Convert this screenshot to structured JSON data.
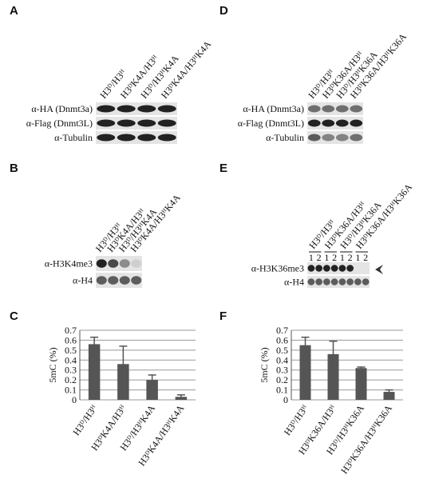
{
  "panels": [
    {
      "letter": "A",
      "lanes": [
        "H3ᴰ/H3ᴴ",
        "H3ᴰK4A/H3ᴴ",
        "H3ᴰ/H3ᴴK4A",
        "H3ᴰK4A/H3ᴴK4A"
      ],
      "rows": [
        "α-HA (Dnmt3a)",
        "α-Flag (Dnmt3L)",
        "α-Tubulin"
      ]
    },
    {
      "letter": "B",
      "lanes": [
        "H3ᴰ/H3ᴴ",
        "H3ᴰK4A/H3ᴴ",
        "H3ᴰ/H3ᴴK4A",
        "H3ᴰK4A/H3ᴴK4A"
      ],
      "rows": [
        "α-H3K4me3",
        "α-H4"
      ]
    },
    {
      "letter": "D",
      "lanes": [
        "H3ᴰ/H3ᴴ",
        "H3ᴰK36A/H3ᴴ",
        "H3ᴰ/H3ᴴK36A",
        "H3ᴰK36A/H3ᴴK36A"
      ],
      "rows": [
        "α-HA (Dnmt3a)",
        "α-Flag (Dnmt3L)",
        "α-Tubulin"
      ]
    },
    {
      "letter": "E",
      "lanes": [
        "H3ᴰ/H3ᴴ",
        "H3ᴰK36A/H3ᴴ",
        "H3ᴰ/H3ᴴK36A",
        "H3ᴰK36A/H3ᴴK36A"
      ],
      "sublanes": [
        "1",
        "2"
      ],
      "rows": [
        "α-H3K36me3",
        "α-H4"
      ]
    }
  ],
  "chart_data": [
    {
      "type": "bar",
      "label": "C",
      "ylabel": "5mC (%)",
      "categories": [
        "H3ᴰ/H3ᴴ",
        "H3ᴰK4A/H3ᴴ",
        "H3ᴰ/H3ᴴK4A",
        "H3ᴰK4A/H3ᴴK4A"
      ],
      "values": [
        0.56,
        0.36,
        0.2,
        0.03
      ],
      "errors": [
        0.07,
        0.18,
        0.05,
        0.02
      ],
      "color": "#555555",
      "ylim": [
        0,
        0.7
      ],
      "yticks": [
        0,
        0.1,
        0.2,
        0.3,
        0.4,
        0.5,
        0.6,
        0.7
      ],
      "grid": true
    },
    {
      "type": "bar",
      "label": "F",
      "ylabel": "5mC (%)",
      "categories": [
        "H3ᴰ/H3ᴴ",
        "H3ᴰK36A/H3ᴴ",
        "H3ᴰ/H3ᴴK36A",
        "H3ᴰK36A/H3ᴴK36A"
      ],
      "values": [
        0.55,
        0.46,
        0.32,
        0.08
      ],
      "errors": [
        0.08,
        0.13,
        0.01,
        0.02
      ],
      "color": "#555555",
      "ylim": [
        0,
        0.7
      ],
      "yticks": [
        0,
        0.1,
        0.2,
        0.3,
        0.4,
        0.5,
        0.6,
        0.7
      ],
      "grid": true
    }
  ]
}
